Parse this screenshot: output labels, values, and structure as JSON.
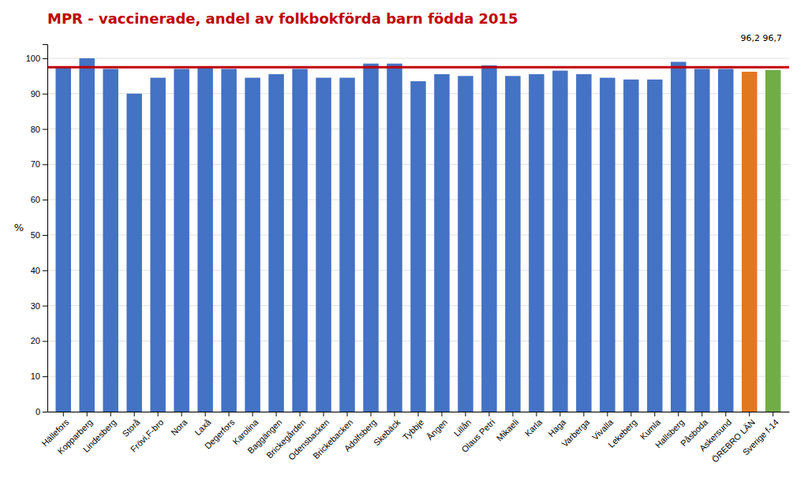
{
  "chart_data": {
    "type": "bar",
    "title": "MPR - vaccinerade, andel av folkbokförda barn födda 2015",
    "y_label": "%",
    "categories": [
      "Hällefors",
      "Kopparberg",
      "Lindesberg",
      "Storå",
      "Frövi,F-bro",
      "Nora",
      "Laxå",
      "Degerfors",
      "Karolina",
      "Baggängen",
      "Brickegården",
      "Odensbacken",
      "Brickebacken",
      "Adolfsberg",
      "Skebäck",
      "Tybbje",
      "Ången",
      "Lillån",
      "Olaus Petri",
      "Mikaeli",
      "Karla",
      "Haga",
      "Varberga",
      "Vivalla",
      "Lekeberg",
      "Kumla",
      "Hallsberg",
      "Påsboda",
      "Askersund",
      "ÖREBRO LÄN",
      "Sverige f-14"
    ],
    "values": [
      97.5,
      100.0,
      97.0,
      90.0,
      94.5,
      97.0,
      97.5,
      97.0,
      94.5,
      95.5,
      97.0,
      94.5,
      94.5,
      98.5,
      98.5,
      93.5,
      95.5,
      95.0,
      98.0,
      95.0,
      95.5,
      96.5,
      95.5,
      94.5,
      94.0,
      94.0,
      99.0,
      97.0,
      97.0,
      96.2,
      96.7
    ],
    "colors": [
      "#4472C4",
      "#4472C4",
      "#4472C4",
      "#4472C4",
      "#4472C4",
      "#4472C4",
      "#4472C4",
      "#4472C4",
      "#4472C4",
      "#4472C4",
      "#4472C4",
      "#4472C4",
      "#4472C4",
      "#4472C4",
      "#4472C4",
      "#4472C4",
      "#4472C4",
      "#4472C4",
      "#4472C4",
      "#4472C4",
      "#4472C4",
      "#4472C4",
      "#4472C4",
      "#4472C4",
      "#4472C4",
      "#4472C4",
      "#4472C4",
      "#4472C4",
      "#4472C4",
      "#E07820",
      "#70AD47"
    ],
    "reference_line": {
      "value": 97.5,
      "color": "#C00000"
    },
    "annotation": "96,2 96,7",
    "ylim": [
      0,
      104
    ],
    "yticks": [
      0,
      10,
      20,
      30,
      40,
      50,
      60,
      70,
      80,
      90,
      100
    ],
    "grid": true
  }
}
